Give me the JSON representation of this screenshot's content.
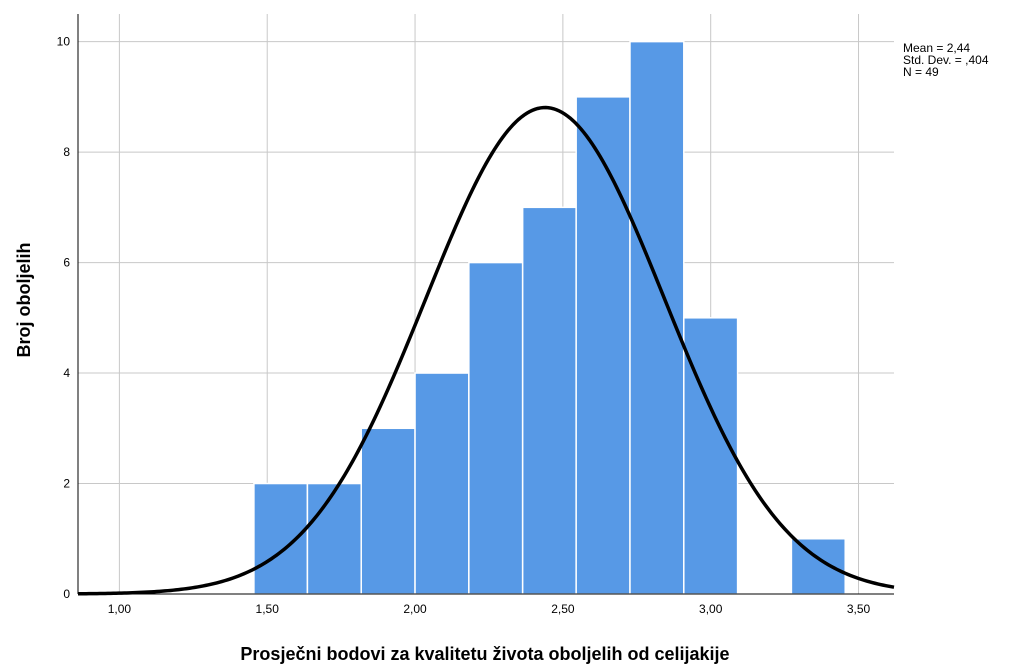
{
  "chart_data": {
    "type": "bar",
    "subtype": "histogram",
    "xlabel": "Prosječni bodovi za kvalitetu života oboljelih od celijakije",
    "ylabel": "Broj oboljelih",
    "xlim": [
      0.86,
      3.62
    ],
    "ylim": [
      0,
      10.5
    ],
    "x_ticks": [
      1.0,
      1.5,
      2.0,
      2.5,
      3.0,
      3.5
    ],
    "x_tick_labels": [
      "1,00",
      "1,50",
      "2,00",
      "2,50",
      "3,00",
      "3,50"
    ],
    "y_ticks": [
      0,
      2,
      4,
      6,
      8,
      10
    ],
    "y_tick_labels": [
      "0",
      "2",
      "4",
      "6",
      "8",
      "10"
    ],
    "grid": true,
    "bar_color": "#5799e6",
    "bins": [
      {
        "start": 1.455,
        "end": 1.636,
        "count": 2
      },
      {
        "start": 1.636,
        "end": 1.818,
        "count": 2
      },
      {
        "start": 1.818,
        "end": 2.0,
        "count": 3
      },
      {
        "start": 2.0,
        "end": 2.182,
        "count": 4
      },
      {
        "start": 2.182,
        "end": 2.364,
        "count": 6
      },
      {
        "start": 2.364,
        "end": 2.545,
        "count": 7
      },
      {
        "start": 2.545,
        "end": 2.727,
        "count": 9
      },
      {
        "start": 2.727,
        "end": 2.909,
        "count": 10
      },
      {
        "start": 2.909,
        "end": 3.091,
        "count": 5
      },
      {
        "start": 3.091,
        "end": 3.273,
        "count": 0
      },
      {
        "start": 3.273,
        "end": 3.455,
        "count": 1
      }
    ],
    "normal_curve": {
      "mean": 2.44,
      "sd": 0.404,
      "n": 49,
      "bin_width": 0.182,
      "color": "#000000"
    },
    "stats_lines": [
      "Mean = 2,44",
      "Std. Dev. = ,404",
      "N = 49"
    ]
  }
}
